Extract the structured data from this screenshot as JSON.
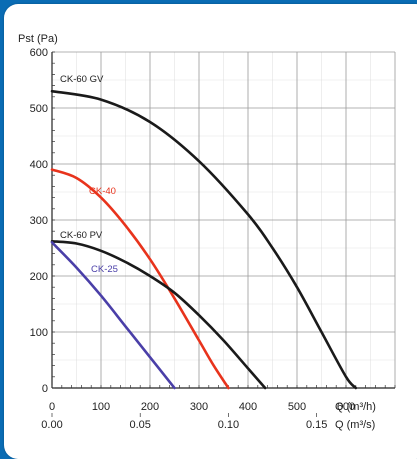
{
  "chart_data": {
    "type": "line",
    "ylabel": "Pst (Pa)",
    "xlabel_primary": "Q (m³/h)",
    "xlabel_secondary": "Q (m³/s)",
    "ylim": [
      0,
      600
    ],
    "xlim": [
      0,
      700
    ],
    "yticks": [
      0,
      100,
      200,
      300,
      400,
      500,
      600
    ],
    "xticks_primary": [
      0,
      100,
      200,
      300,
      400,
      500,
      600
    ],
    "xlim_secondary": [
      0,
      0.1944
    ],
    "xticks_secondary": [
      {
        "value": 0.0,
        "label": "0.00"
      },
      {
        "value": 0.05,
        "label": "0.05"
      },
      {
        "value": 0.1,
        "label": "0.10"
      },
      {
        "value": 0.15,
        "label": "0.15"
      }
    ],
    "grid": true,
    "series": [
      {
        "name": "CK-60 GV",
        "color": "#1a1a1a",
        "x": [
          0,
          100,
          200,
          300,
          400,
          450,
          500,
          550,
          600,
          620
        ],
        "y": [
          530,
          515,
          475,
          405,
          310,
          250,
          180,
          100,
          20,
          0
        ]
      },
      {
        "name": "CK-40",
        "color": "#e8331c",
        "x": [
          0,
          50,
          100,
          150,
          200,
          250,
          300,
          330,
          360
        ],
        "y": [
          390,
          375,
          340,
          290,
          230,
          160,
          85,
          40,
          0
        ]
      },
      {
        "name": "CK-60 PV",
        "color": "#1a1a1a",
        "x": [
          0,
          50,
          100,
          150,
          200,
          250,
          300,
          350,
          400,
          435
        ],
        "y": [
          262,
          258,
          245,
          225,
          200,
          170,
          130,
          85,
          35,
          0
        ]
      },
      {
        "name": "CK-25",
        "color": "#4a3fa8",
        "x": [
          0,
          50,
          100,
          150,
          200,
          250
        ],
        "y": [
          260,
          215,
          165,
          110,
          55,
          0
        ]
      }
    ]
  }
}
